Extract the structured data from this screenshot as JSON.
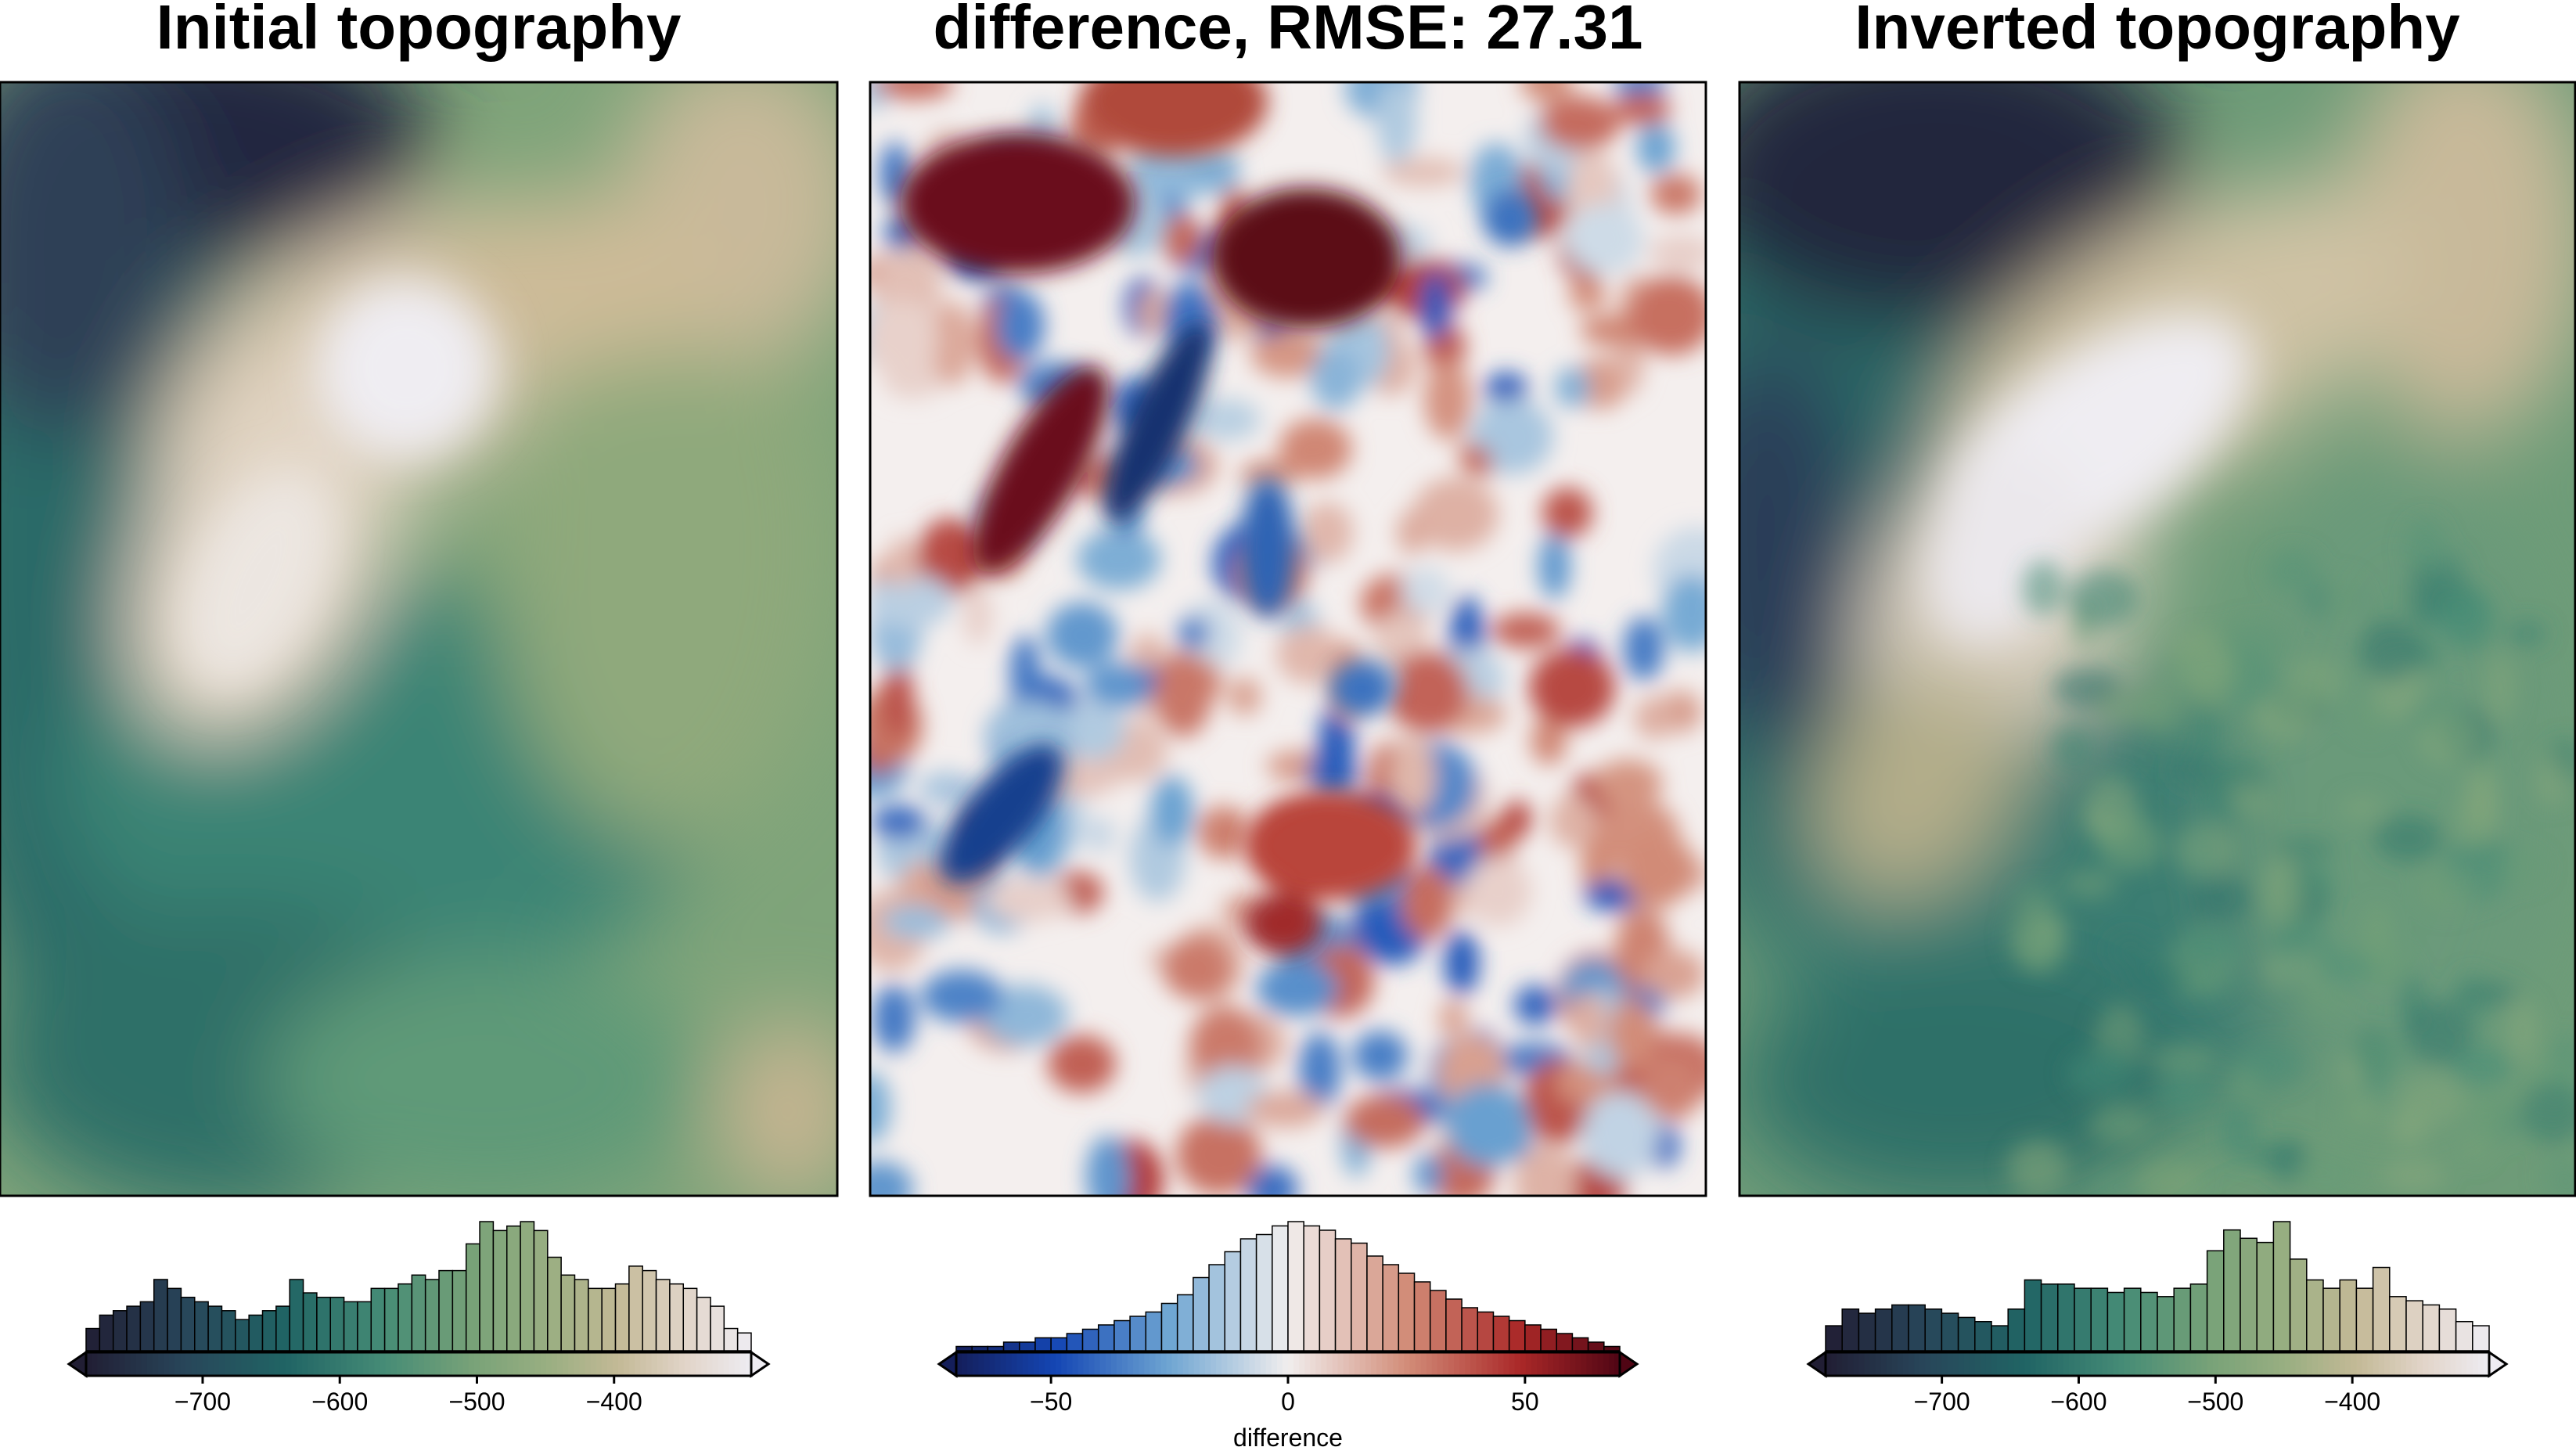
{
  "chart_data": [
    {
      "type": "heatmap",
      "title": "Initial topography",
      "colormap": "gmt/earth-like (dark navy → teal → green → tan → white)",
      "colorbar": {
        "range": [
          -785,
          -300
        ],
        "ticks": [
          -700,
          -600,
          -500,
          -400
        ],
        "tick_labels": [
          "−700",
          "−600",
          "−500",
          "−400"
        ],
        "label": "",
        "extend": "both",
        "histogram": [
          5,
          8,
          9,
          10,
          11,
          16,
          14,
          12,
          11,
          10,
          9,
          7,
          8,
          9,
          10,
          16,
          13,
          12,
          12,
          11,
          11,
          14,
          14,
          15,
          17,
          16,
          18,
          18,
          24,
          29,
          27,
          28,
          29,
          27,
          21,
          17,
          16,
          14,
          14,
          15,
          19,
          18,
          16,
          15,
          14,
          12,
          10,
          5,
          4
        ]
      },
      "features": "broad NE-SW trending high (light) in upper center, low (dark navy) upper-left, moderate green values elsewhere"
    },
    {
      "type": "heatmap",
      "title": "difference, RMSE: 27.31",
      "colormap": "diverging blue-white-red (balance)",
      "colorbar": {
        "range": [
          -70,
          70
        ],
        "ticks": [
          -50,
          0,
          50
        ],
        "tick_labels": [
          "−50",
          "0",
          "50"
        ],
        "label": "difference",
        "extend": "both",
        "histogram": [
          1,
          1,
          1,
          2,
          2,
          3,
          3,
          4,
          5,
          6,
          7,
          8,
          9,
          11,
          13,
          17,
          20,
          23,
          26,
          27,
          29,
          30,
          29,
          28,
          26,
          25,
          22,
          20,
          18,
          16,
          14,
          12,
          10,
          9,
          8,
          7,
          6,
          5,
          4,
          3,
          2,
          1
        ]
      },
      "features": "strong negative (blue) elongated anomalies along NE-SW axis, strong positive (dark red) anomalies adjacent upper-center, small-scale mixed noise elsewhere"
    },
    {
      "type": "heatmap",
      "title": "Inverted topography",
      "colormap": "gmt/earth-like (dark navy → teal → green → tan → white)",
      "colorbar": {
        "range": [
          -785,
          -300
        ],
        "ticks": [
          -700,
          -600,
          -500,
          -400
        ],
        "tick_labels": [
          "−700",
          "−600",
          "−500",
          "−400"
        ],
        "label": "",
        "extend": "both",
        "histogram": [
          6,
          10,
          9,
          10,
          11,
          11,
          10,
          9,
          8,
          7,
          6,
          10,
          17,
          16,
          16,
          15,
          15,
          14,
          15,
          14,
          13,
          15,
          16,
          24,
          29,
          27,
          26,
          31,
          22,
          17,
          15,
          17,
          15,
          20,
          13,
          12,
          11,
          10,
          7,
          6
        ]
      },
      "features": "NE-SW trending high (light) upper center with rougher texture, dark navy upper-left, darker teal patches lower center"
    }
  ]
}
